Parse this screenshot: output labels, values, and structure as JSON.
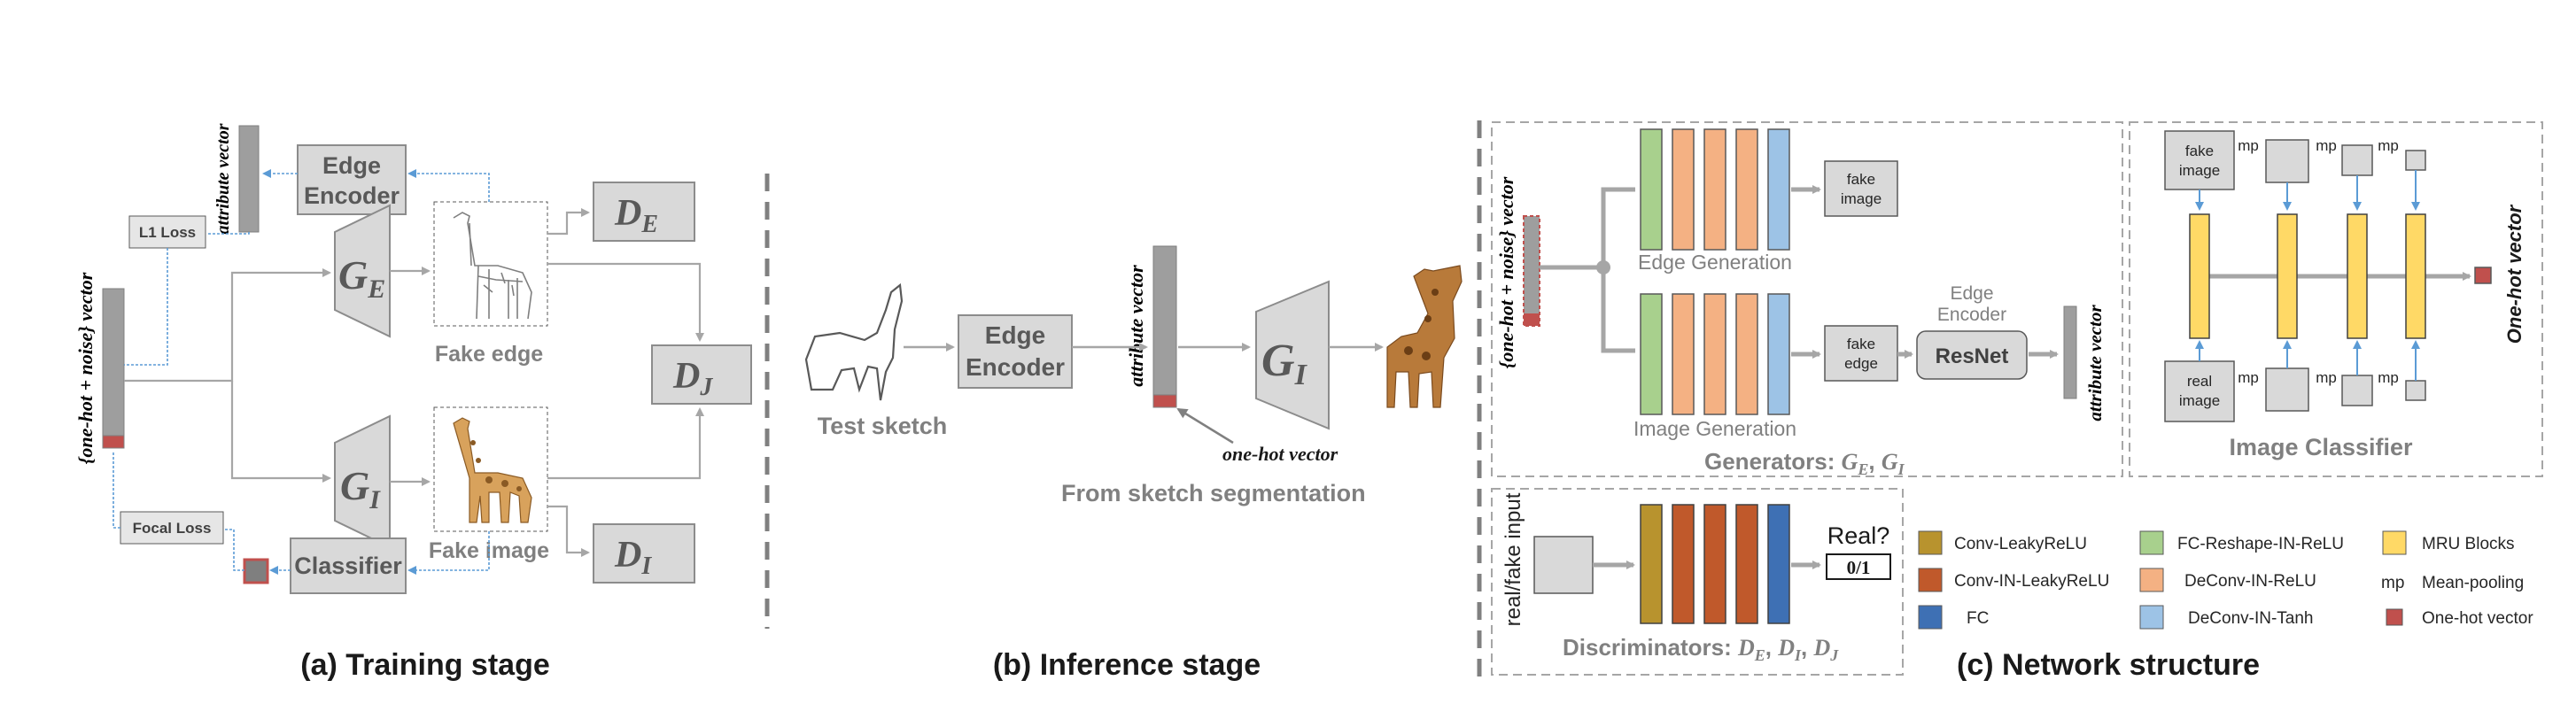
{
  "training": {
    "caption": "(a) Training stage",
    "input_vector_label": "{one-hot + noise} vector",
    "attribute_vector_label": "attribute vector",
    "l1_loss": "L1 Loss",
    "focal_loss": "Focal Loss",
    "edge_encoder_line1": "Edge",
    "edge_encoder_line2": "Encoder",
    "generator_edge": "G",
    "generator_edge_sub": "E",
    "generator_image": "G",
    "generator_image_sub": "I",
    "fake_edge": "Fake edge",
    "fake_image": "Fake image",
    "disc_edge": "D",
    "disc_edge_sub": "E",
    "disc_joint": "D",
    "disc_joint_sub": "J",
    "disc_image": "D",
    "disc_image_sub": "I",
    "classifier": "Classifier"
  },
  "inference": {
    "caption": "(b) Inference stage",
    "test_sketch": "Test sketch",
    "edge_encoder_line1": "Edge",
    "edge_encoder_line2": "Encoder",
    "attribute_vector_label": "attribute vector",
    "one_hot_vector": "one-hot vector",
    "generator": "G",
    "generator_sub": "I",
    "from_segmentation": "From sketch segmentation"
  },
  "network": {
    "caption": "(c) Network structure",
    "input_vector_label": "{one-hot + noise} vector",
    "edge_generation": "Edge Generation",
    "image_generation": "Image Generation",
    "fake_image_line1": "fake",
    "fake_image_line2": "image",
    "fake_edge_line1": "fake",
    "fake_edge_line2": "edge",
    "edge_encoder_line1": "Edge",
    "edge_encoder_line2": "Encoder",
    "resnet": "ResNet",
    "attribute_vector_label": "attribute vector",
    "generators_title": "Generators: ",
    "generators_g": "G",
    "generators_sub1": "E",
    "generators_sep": ", ",
    "generators_sub2": "I",
    "classifier_fake_line1": "fake",
    "classifier_fake_line2": "image",
    "classifier_real_line1": "real",
    "classifier_real_line2": "image",
    "mp": "mp",
    "one_hot_vector_label": "One-hot vector",
    "image_classifier": "Image Classifier",
    "real_fake_input": "real/fake input",
    "real_question": "Real?",
    "zero_one": "0/1",
    "discriminators_title": "Discriminators: ",
    "disc_d": "D",
    "disc_sub1": "E",
    "disc_sub2": "I",
    "disc_sub3": "J",
    "disc_sep": ", "
  },
  "legend": [
    {
      "label": "Conv-LeakyReLU",
      "color": "#b8932e"
    },
    {
      "label": "Conv-IN-LeakyReLU",
      "color": "#c0592b"
    },
    {
      "label": "FC",
      "color": "#3e70b4"
    },
    {
      "label": "FC-Reshape-IN-ReLU",
      "color": "#a8d08d"
    },
    {
      "label": "DeConv-IN-ReLU",
      "color": "#f4b183"
    },
    {
      "label": "DeConv-IN-Tanh",
      "color": "#9dc3e6"
    },
    {
      "label": "MRU Blocks",
      "color": "#ffd966"
    },
    {
      "label": "Mean-pooling",
      "symbol": "mp"
    },
    {
      "label": "One-hot vector",
      "color": "#c0504d"
    }
  ],
  "colors": {
    "box_fill": "#d9d9d9",
    "box_stroke": "#8c8c8c",
    "vector_fill": "#9e9e9e",
    "onehot_fill": "#c0504d",
    "arrow_gray": "#a6a6a6",
    "arrow_blue": "#5b9bd5",
    "label_gray": "#808080"
  }
}
